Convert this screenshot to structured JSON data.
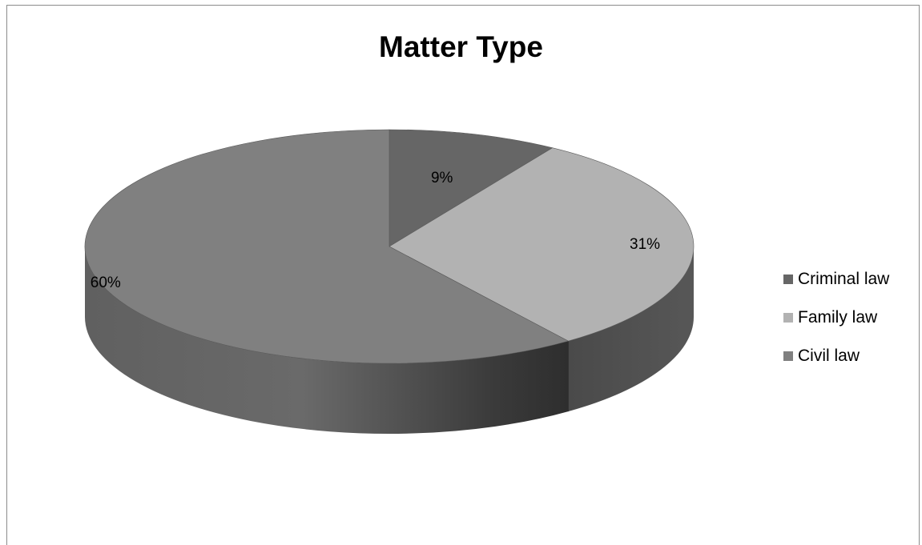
{
  "chart_data": {
    "type": "pie",
    "title": "Matter Type",
    "categories": [
      "Criminal law",
      "Family law",
      "Civil law"
    ],
    "values": [
      9,
      31,
      60
    ],
    "labels": [
      "9%",
      "31%",
      "60%"
    ],
    "colors": [
      "#666666",
      "#b2b2b2",
      "#808080"
    ],
    "side_colors": [
      "#4a4a4a",
      "#4f4f4f",
      "#5e5e5e"
    ],
    "legend_position": "right",
    "style": "3d"
  }
}
